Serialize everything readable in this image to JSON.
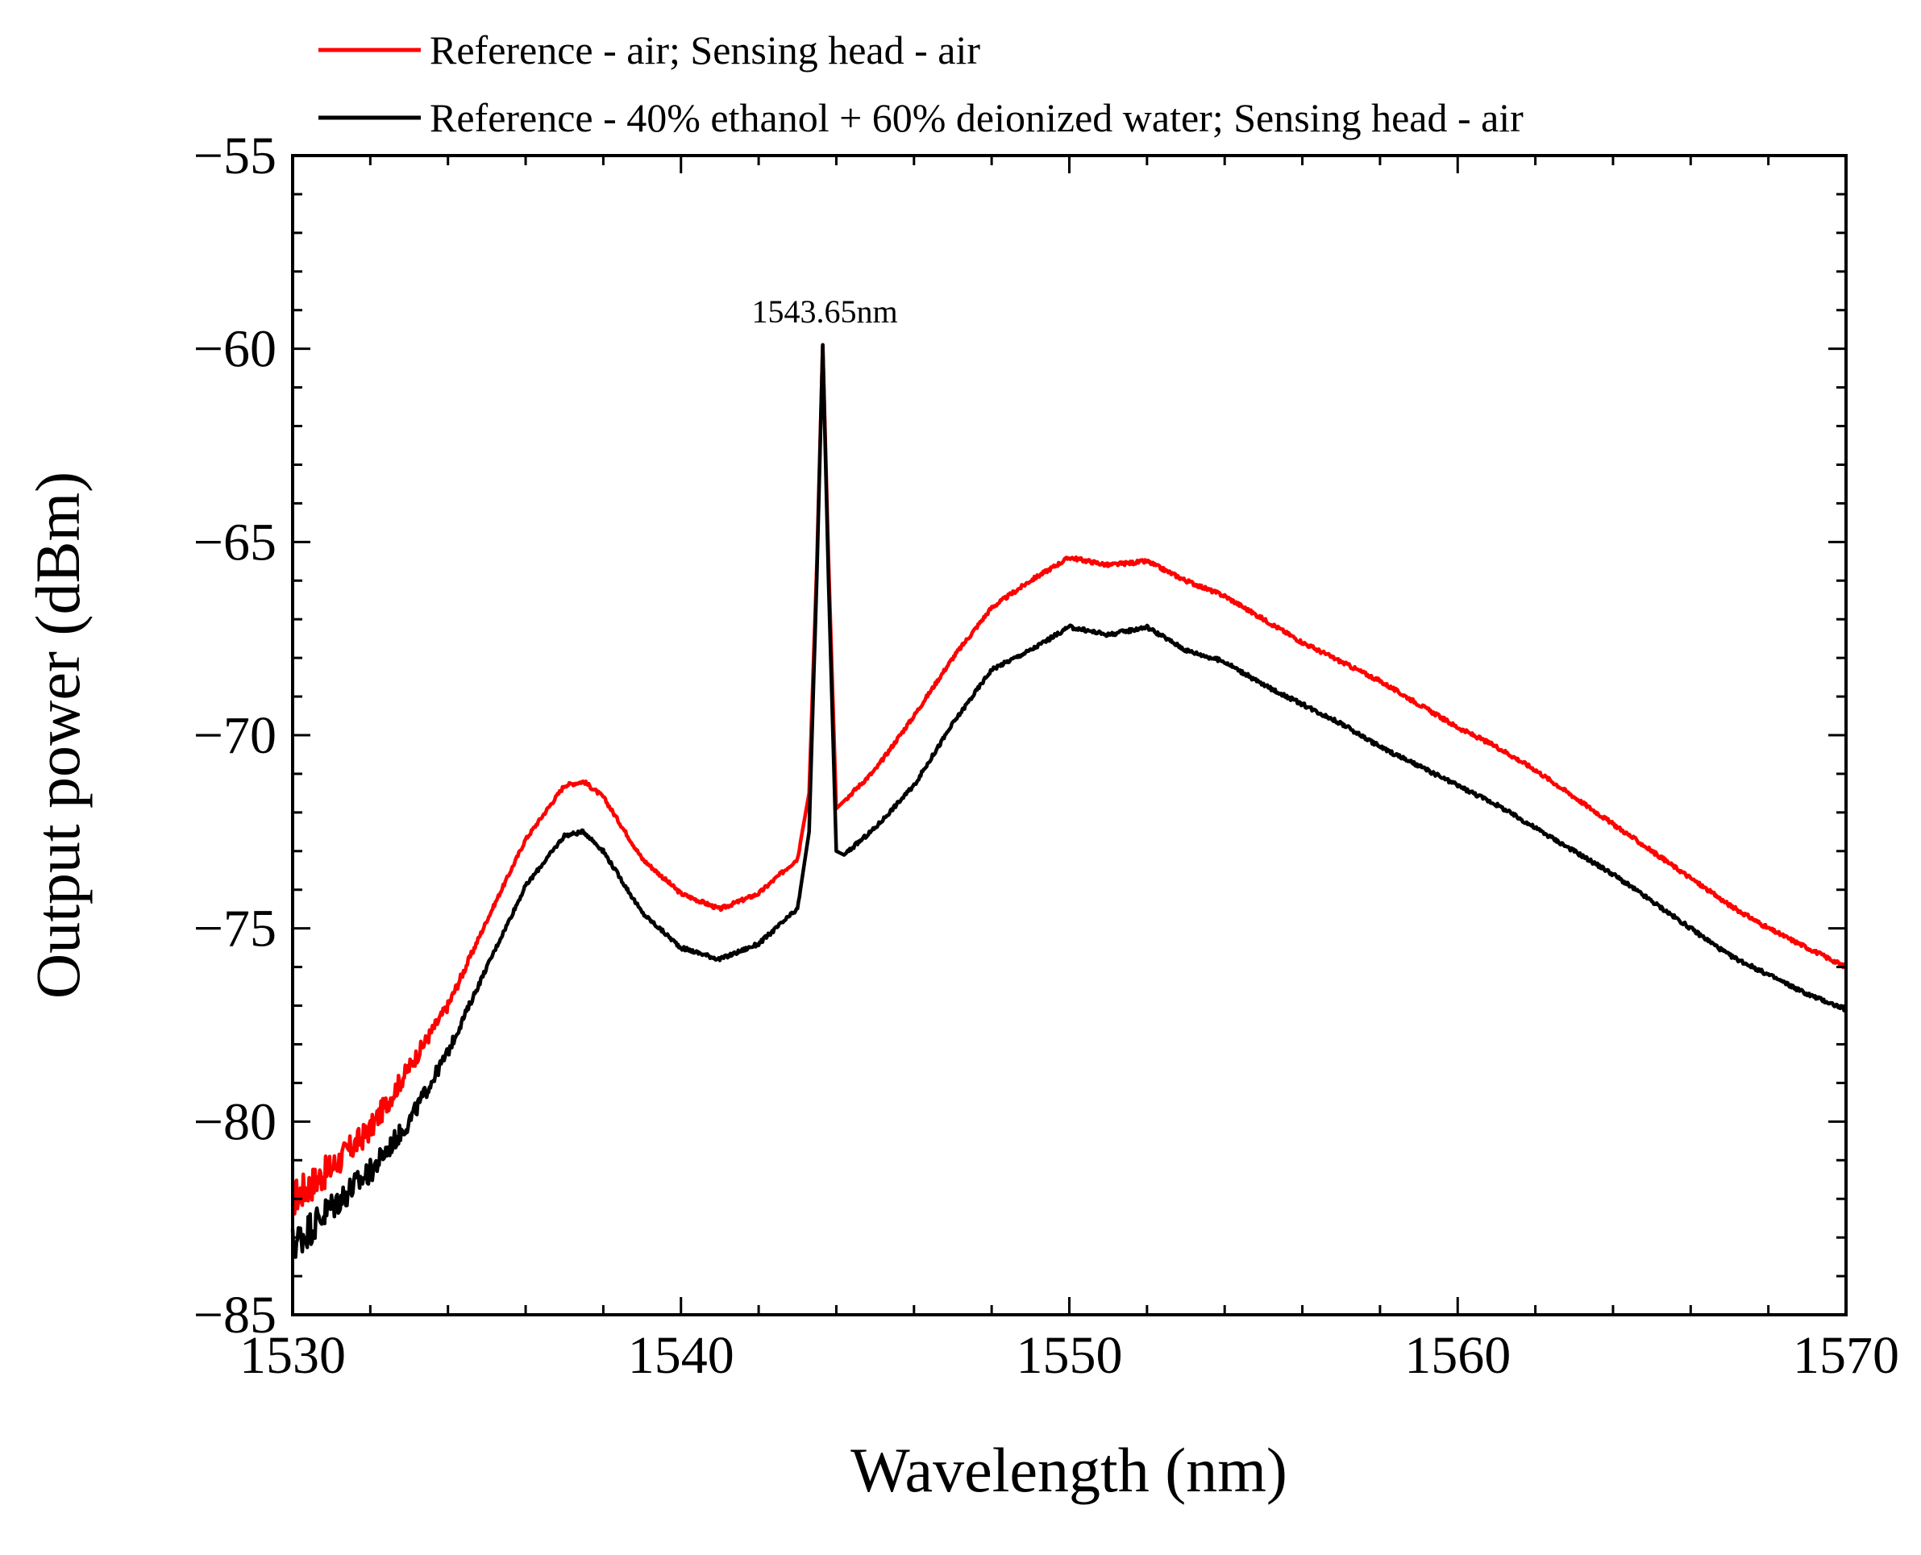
{
  "chart_data": {
    "type": "line",
    "title": "",
    "xlabel": "Wavelength (nm)",
    "ylabel": "Output power (dBm)",
    "xlim": [
      1530,
      1570
    ],
    "ylim": [
      -85,
      -55
    ],
    "xticks": [
      1530,
      1540,
      1550,
      1560,
      1570
    ],
    "yticks": [
      -85,
      -80,
      -75,
      -70,
      -65,
      -60,
      -55
    ],
    "xtick_labels": [
      "1530",
      "1540",
      "1550",
      "1560",
      "1570"
    ],
    "ytick_labels": [
      "−85",
      "−80",
      "−75",
      "−70",
      "−65",
      "−60",
      "−55"
    ],
    "grid": false,
    "legend_position": "top",
    "annotation": {
      "text": "1543.65nm",
      "x": 1543.65,
      "y": -59.9
    },
    "series": [
      {
        "name": "Reference - air; Sensing head - air",
        "color": "#ff0000",
        "x": [
          1530,
          1531,
          1532,
          1533,
          1534,
          1535,
          1536,
          1537,
          1537.5,
          1538,
          1539,
          1540,
          1541,
          1542,
          1543,
          1543.3,
          1543.5,
          1543.65,
          1543.8,
          1544,
          1544.2,
          1545,
          1546,
          1547,
          1548,
          1549,
          1550,
          1551,
          1552,
          1553,
          1554,
          1555,
          1556,
          1557,
          1558,
          1559,
          1560,
          1561,
          1562,
          1563,
          1564,
          1565,
          1566,
          1567,
          1568,
          1569,
          1570
        ],
        "y": [
          -82.0,
          -81.2,
          -80.2,
          -78.6,
          -77.0,
          -74.8,
          -72.7,
          -71.3,
          -71.2,
          -71.6,
          -73.2,
          -74.1,
          -74.5,
          -74.1,
          -73.2,
          -71.5,
          -65.5,
          -59.9,
          -65.5,
          -71.9,
          -71.7,
          -70.9,
          -69.5,
          -68.0,
          -66.7,
          -66.0,
          -65.4,
          -65.6,
          -65.5,
          -66.0,
          -66.4,
          -67.0,
          -67.6,
          -68.1,
          -68.6,
          -69.2,
          -69.8,
          -70.3,
          -70.9,
          -71.6,
          -72.3,
          -73.0,
          -73.7,
          -74.4,
          -75.0,
          -75.5,
          -76.0
        ]
      },
      {
        "name": "Reference - 40% ethanol + 60% deionized water; Sensing head - air",
        "color": "#000000",
        "x": [
          1530,
          1531,
          1532,
          1533,
          1534,
          1535,
          1536,
          1537,
          1537.5,
          1538,
          1539,
          1540,
          1541,
          1542,
          1543,
          1543.3,
          1543.5,
          1543.65,
          1543.8,
          1544,
          1544.2,
          1545,
          1546,
          1547,
          1548,
          1549,
          1550,
          1551,
          1552,
          1553,
          1554,
          1555,
          1556,
          1557,
          1558,
          1559,
          1560,
          1561,
          1562,
          1563,
          1564,
          1565,
          1566,
          1567,
          1568,
          1569,
          1570
        ],
        "y": [
          -83.2,
          -82.2,
          -81.3,
          -80.0,
          -78.2,
          -76.0,
          -73.9,
          -72.6,
          -72.5,
          -73.0,
          -74.6,
          -75.5,
          -75.8,
          -75.4,
          -74.5,
          -72.5,
          -65.8,
          -59.9,
          -66.0,
          -73.0,
          -73.1,
          -72.4,
          -71.3,
          -69.7,
          -68.3,
          -67.8,
          -67.2,
          -67.4,
          -67.2,
          -67.8,
          -68.1,
          -68.7,
          -69.2,
          -69.7,
          -70.3,
          -70.8,
          -71.3,
          -71.8,
          -72.4,
          -73.0,
          -73.6,
          -74.3,
          -75.0,
          -75.7,
          -76.2,
          -76.7,
          -77.1
        ]
      }
    ]
  }
}
